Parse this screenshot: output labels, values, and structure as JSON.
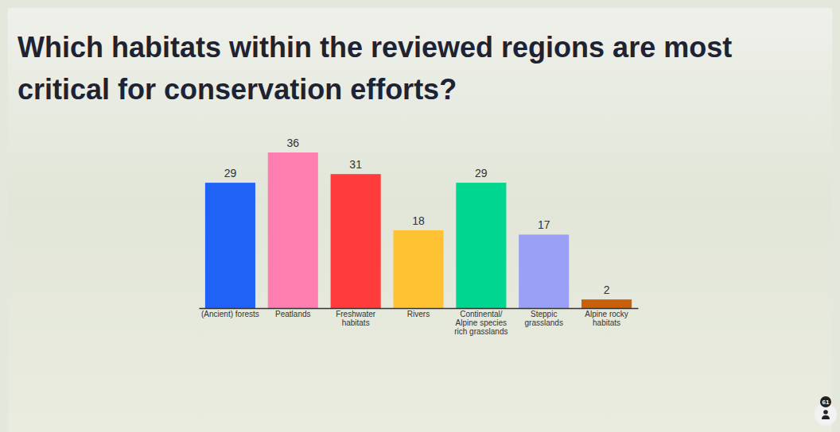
{
  "chart_data": {
    "type": "bar",
    "title": "Which habitats within the reviewed regions are most critical for conservation efforts?",
    "categories": [
      "(Ancient) forests",
      "Peatlands",
      "Freshwater habitats",
      "Rivers",
      "Continental/ Alpine species rich grasslands",
      "Steppic grasslands",
      "Alpine rocky habitats"
    ],
    "values": [
      29,
      36,
      31,
      18,
      29,
      17,
      2
    ],
    "colors": [
      "#1f62f5",
      "#ff7eb0",
      "#ff3b3b",
      "#ffc233",
      "#00d68f",
      "#9aa0f5",
      "#c8600a"
    ],
    "ylim": [
      0,
      36
    ],
    "data_labels": true,
    "tick_labels": "x",
    "annotations": [
      "61"
    ]
  }
}
